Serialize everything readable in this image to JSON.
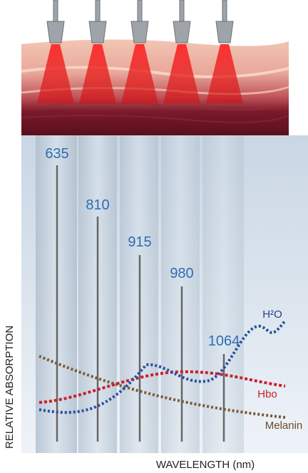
{
  "wavelengths": [
    "635",
    "810",
    "915",
    "980",
    "1064"
  ],
  "curves": {
    "water": "H²O",
    "hemoglobin": "Hbo",
    "melanin": "Melanin"
  },
  "axes": {
    "y": "RELATIVE ABSORPTION",
    "x": "WAVELENGTH (nm)"
  }
}
